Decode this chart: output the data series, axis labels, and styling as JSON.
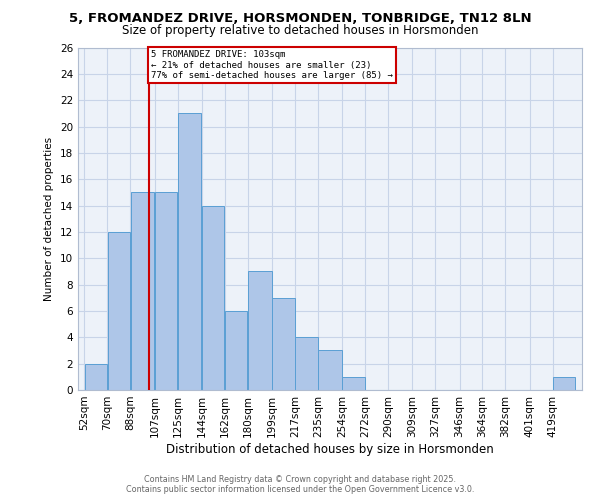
{
  "title": "5, FROMANDEZ DRIVE, HORSMONDEN, TONBRIDGE, TN12 8LN",
  "subtitle": "Size of property relative to detached houses in Horsmonden",
  "xlabel": "Distribution of detached houses by size in Horsmonden",
  "ylabel": "Number of detached properties",
  "categories": [
    "52sqm",
    "70sqm",
    "88sqm",
    "107sqm",
    "125sqm",
    "144sqm",
    "162sqm",
    "180sqm",
    "199sqm",
    "217sqm",
    "235sqm",
    "254sqm",
    "272sqm",
    "290sqm",
    "309sqm",
    "327sqm",
    "346sqm",
    "364sqm",
    "382sqm",
    "401sqm",
    "419sqm"
  ],
  "values": [
    2,
    12,
    15,
    15,
    21,
    14,
    6,
    9,
    7,
    4,
    3,
    1,
    0,
    0,
    0,
    0,
    0,
    0,
    0,
    0,
    1
  ],
  "bar_color": "#aec6e8",
  "bar_edge_color": "#5a9fd4",
  "vline_x_idx": 2.83,
  "annotation_text_line1": "5 FROMANDEZ DRIVE: 103sqm",
  "annotation_text_line2": "← 21% of detached houses are smaller (23)",
  "annotation_text_line3": "77% of semi-detached houses are larger (85) →",
  "vline_color": "#cc0000",
  "box_edge_color": "#cc0000",
  "ylim": [
    0,
    26
  ],
  "yticks": [
    0,
    2,
    4,
    6,
    8,
    10,
    12,
    14,
    16,
    18,
    20,
    22,
    24,
    26
  ],
  "grid_color": "#c8d4e8",
  "bg_color": "#edf2f9",
  "footer_line1": "Contains HM Land Registry data © Crown copyright and database right 2025.",
  "footer_line2": "Contains public sector information licensed under the Open Government Licence v3.0.",
  "bin_edges": [
    52,
    70,
    88,
    107,
    125,
    144,
    162,
    180,
    199,
    217,
    235,
    254,
    272,
    290,
    309,
    327,
    346,
    364,
    382,
    401,
    419,
    437
  ]
}
